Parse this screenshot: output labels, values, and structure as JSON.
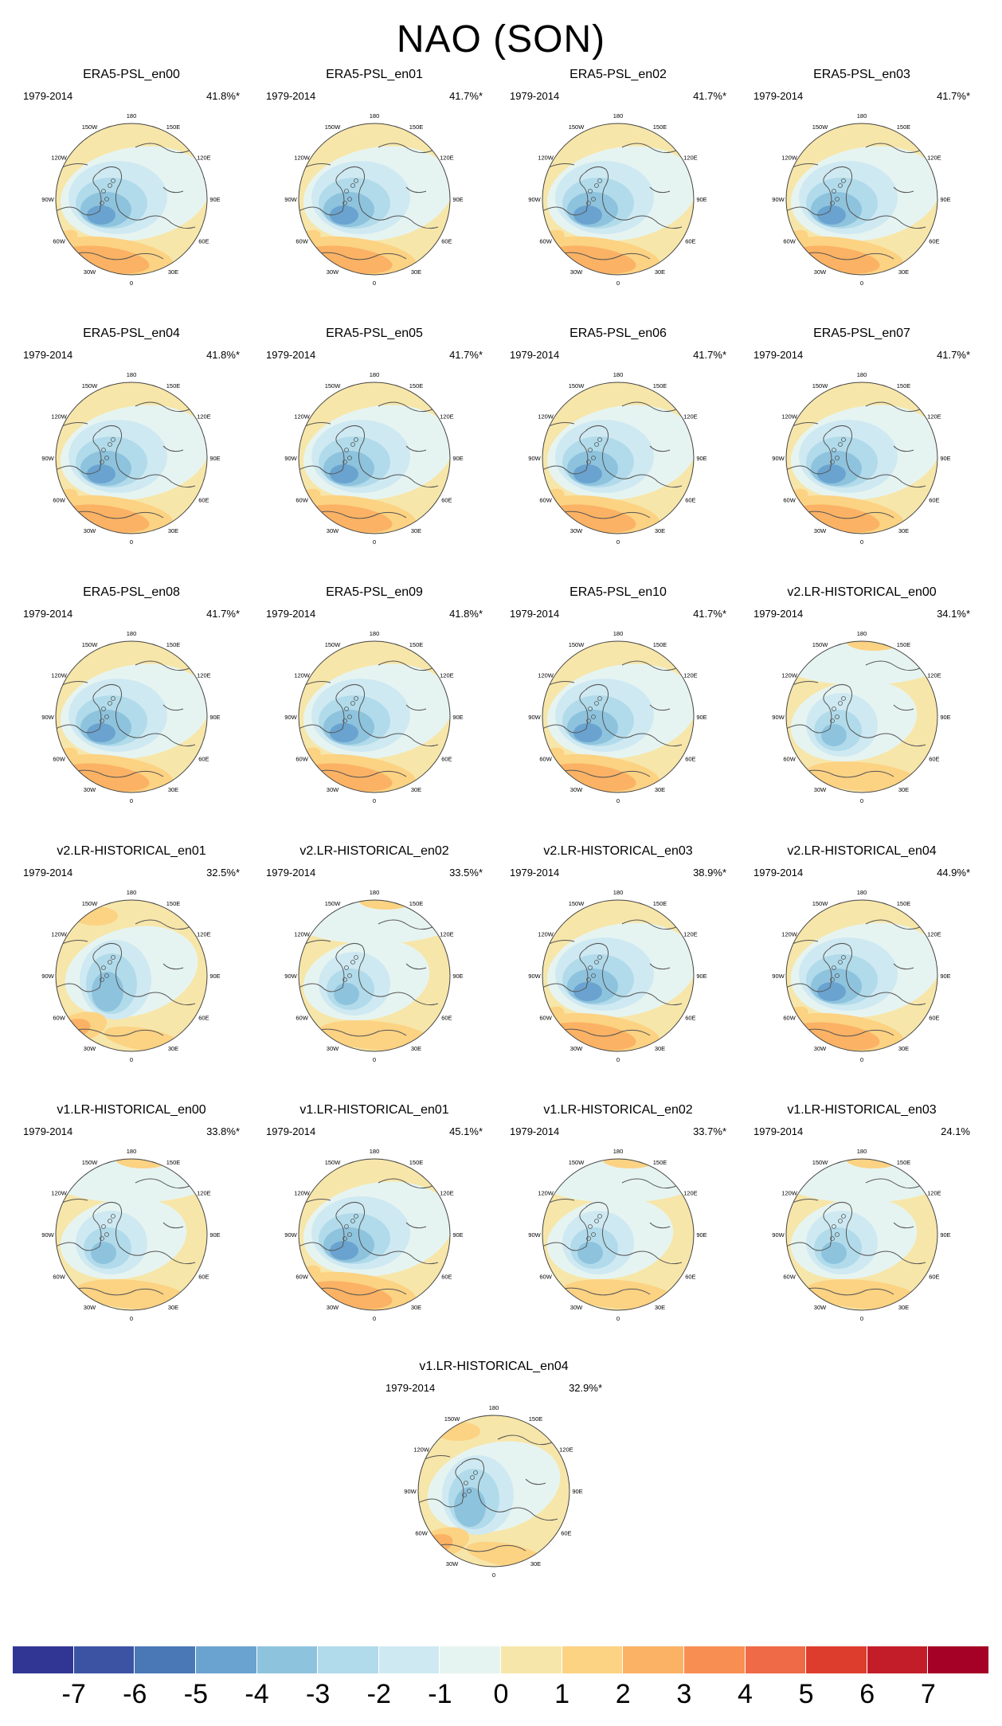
{
  "title": "NAO (SON)",
  "panels": [
    {
      "title": "ERA5-PSL_en00",
      "period": "1979-2014",
      "pct": "41.8%*",
      "variant": "era"
    },
    {
      "title": "ERA5-PSL_en01",
      "period": "1979-2014",
      "pct": "41.7%*",
      "variant": "era"
    },
    {
      "title": "ERA5-PSL_en02",
      "period": "1979-2014",
      "pct": "41.7%*",
      "variant": "era"
    },
    {
      "title": "ERA5-PSL_en03",
      "period": "1979-2014",
      "pct": "41.7%*",
      "variant": "era"
    },
    {
      "title": "ERA5-PSL_en04",
      "period": "1979-2014",
      "pct": "41.8%*",
      "variant": "era"
    },
    {
      "title": "ERA5-PSL_en05",
      "period": "1979-2014",
      "pct": "41.7%*",
      "variant": "era"
    },
    {
      "title": "ERA5-PSL_en06",
      "period": "1979-2014",
      "pct": "41.7%*",
      "variant": "era"
    },
    {
      "title": "ERA5-PSL_en07",
      "period": "1979-2014",
      "pct": "41.7%*",
      "variant": "era"
    },
    {
      "title": "ERA5-PSL_en08",
      "period": "1979-2014",
      "pct": "41.7%*",
      "variant": "era"
    },
    {
      "title": "ERA5-PSL_en09",
      "period": "1979-2014",
      "pct": "41.8%*",
      "variant": "era"
    },
    {
      "title": "ERA5-PSL_en10",
      "period": "1979-2014",
      "pct": "41.7%*",
      "variant": "era"
    },
    {
      "title": "v2.LR-HISTORICAL_en00",
      "period": "1979-2014",
      "pct": "34.1%*",
      "variant": "weak"
    },
    {
      "title": "v2.LR-HISTORICAL_en01",
      "period": "1979-2014",
      "pct": "32.5%*",
      "variant": "mid"
    },
    {
      "title": "v2.LR-HISTORICAL_en02",
      "period": "1979-2014",
      "pct": "33.5%*",
      "variant": "weak"
    },
    {
      "title": "v2.LR-HISTORICAL_en03",
      "period": "1979-2014",
      "pct": "38.9%*",
      "variant": "era"
    },
    {
      "title": "v2.LR-HISTORICAL_en04",
      "period": "1979-2014",
      "pct": "44.9%*",
      "variant": "era"
    },
    {
      "title": "v1.LR-HISTORICAL_en00",
      "period": "1979-2014",
      "pct": "33.8%*",
      "variant": "weak"
    },
    {
      "title": "v1.LR-HISTORICAL_en01",
      "period": "1979-2014",
      "pct": "45.1%*",
      "variant": "era"
    },
    {
      "title": "v1.LR-HISTORICAL_en02",
      "period": "1979-2014",
      "pct": "33.7%*",
      "variant": "weak"
    },
    {
      "title": "v1.LR-HISTORICAL_en03",
      "period": "1979-2014",
      "pct": "24.1%",
      "variant": "weak"
    },
    {
      "title": "v1.LR-HISTORICAL_en04",
      "period": "1979-2014",
      "pct": "32.9%*",
      "variant": "mid"
    }
  ],
  "lon_labels": [
    "180",
    "150E",
    "120E",
    "90E",
    "60E",
    "30E",
    "0",
    "30W",
    "60W",
    "90W",
    "120W",
    "150W"
  ],
  "colorbar": {
    "colors": [
      "#313695",
      "#3c53a4",
      "#4a78b7",
      "#6aa3cf",
      "#8ec3de",
      "#b1dbea",
      "#cfe9f2",
      "#e6f4f1",
      "#f7e6a9",
      "#fcd283",
      "#fbb264",
      "#f98e52",
      "#ef6a46",
      "#dd3d2d",
      "#c31d2a",
      "#a50026"
    ],
    "labels": [
      "-7",
      "-6",
      "-5",
      "-4",
      "-3",
      "-2",
      "-1",
      "0",
      "1",
      "2",
      "3",
      "4",
      "5",
      "6",
      "7"
    ]
  }
}
